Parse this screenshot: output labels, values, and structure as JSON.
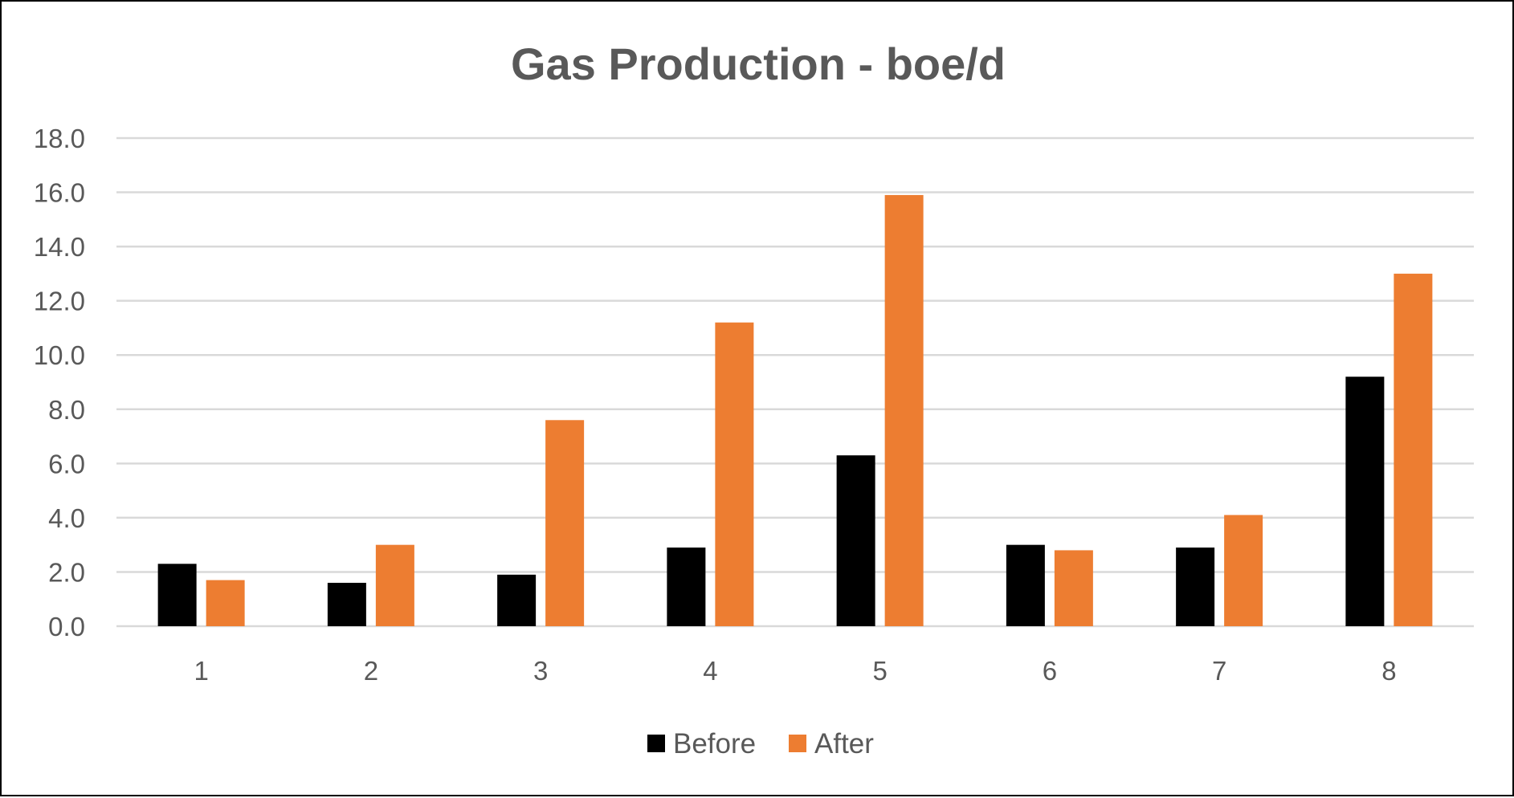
{
  "chart_data": {
    "type": "bar",
    "title": "Gas Production - boe/d",
    "xlabel": "",
    "ylabel": "",
    "categories": [
      "1",
      "2",
      "3",
      "4",
      "5",
      "6",
      "7",
      "8"
    ],
    "series": [
      {
        "name": "Before",
        "color": "#000000",
        "values": [
          2.3,
          1.6,
          1.9,
          2.9,
          6.3,
          3.0,
          2.9,
          9.2
        ]
      },
      {
        "name": "After",
        "color": "#ED7D31",
        "values": [
          1.7,
          3.0,
          7.6,
          11.2,
          15.9,
          2.8,
          4.1,
          13.0
        ]
      }
    ],
    "ylim": [
      0,
      18
    ],
    "yticks": [
      "0.0",
      "2.0",
      "4.0",
      "6.0",
      "8.0",
      "10.0",
      "12.0",
      "14.0",
      "16.0",
      "18.0"
    ],
    "grid": true,
    "legend": "bottom-center"
  }
}
